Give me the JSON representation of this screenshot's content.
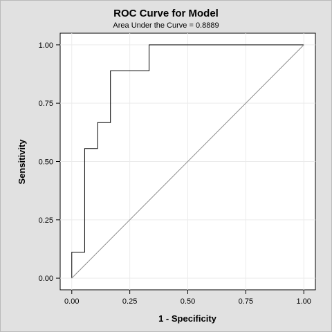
{
  "chart_data": {
    "type": "line",
    "title": "ROC Curve for Model",
    "subtitle": "Area Under the Curve = 0.8889",
    "xlabel": "1 - Specificity",
    "ylabel": "Sensitivity",
    "xlim": [
      -0.05,
      1.05
    ],
    "ylim": [
      -0.05,
      1.05
    ],
    "xticks": [
      "0.00",
      "0.25",
      "0.50",
      "0.75",
      "1.00"
    ],
    "yticks": [
      "0.00",
      "0.25",
      "0.50",
      "0.75",
      "1.00"
    ],
    "grid": true,
    "series": [
      {
        "x": [
          0.0,
          0.0,
          0.0556,
          0.0556,
          0.1111,
          0.1111,
          0.1667,
          0.1667,
          0.3333,
          0.3333,
          1.0
        ],
        "y": [
          0.0,
          0.1111,
          0.1111,
          0.5556,
          0.5556,
          0.6667,
          0.6667,
          0.8889,
          0.8889,
          1.0,
          1.0
        ],
        "color": "#000000"
      },
      {
        "x": [
          0.0,
          1.0
        ],
        "y": [
          0.0,
          1.0
        ],
        "color": "#8c8c8c"
      }
    ]
  }
}
